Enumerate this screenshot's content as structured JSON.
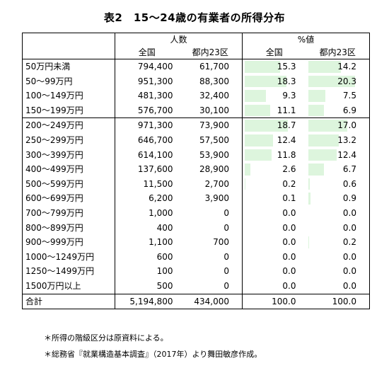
{
  "title": "表2　15〜24歳の有業者の所得分布",
  "header": {
    "group_count": "人数",
    "group_pct": "%値",
    "col_national": "全国",
    "col_tokyo23": "都内23区"
  },
  "rows": [
    {
      "label": "50万円未満",
      "n": "794,400",
      "t": "61,700",
      "pn": "15.3",
      "pt": "14.2",
      "pn_v": 15.3,
      "pt_v": 14.2
    },
    {
      "label": "50〜99万円",
      "n": "951,300",
      "t": "88,300",
      "pn": "18.3",
      "pt": "20.3",
      "pn_v": 18.3,
      "pt_v": 20.3
    },
    {
      "label": "100〜149万円",
      "n": "481,300",
      "t": "32,400",
      "pn": "9.3",
      "pt": "7.5",
      "pn_v": 9.3,
      "pt_v": 7.5
    },
    {
      "label": "150〜199万円",
      "n": "576,700",
      "t": "30,100",
      "pn": "11.1",
      "pt": "6.9",
      "pn_v": 11.1,
      "pt_v": 6.9
    },
    {
      "label": "200〜249万円",
      "n": "971,300",
      "t": "73,900",
      "pn": "18.7",
      "pt": "17.0",
      "pn_v": 18.7,
      "pt_v": 17.0
    },
    {
      "label": "250〜299万円",
      "n": "646,700",
      "t": "57,500",
      "pn": "12.4",
      "pt": "13.2",
      "pn_v": 12.4,
      "pt_v": 13.2
    },
    {
      "label": "300〜399万円",
      "n": "614,100",
      "t": "53,900",
      "pn": "11.8",
      "pt": "12.4",
      "pn_v": 11.8,
      "pt_v": 12.4
    },
    {
      "label": "400〜499万円",
      "n": "137,600",
      "t": "28,900",
      "pn": "2.6",
      "pt": "6.7",
      "pn_v": 2.6,
      "pt_v": 6.7
    },
    {
      "label": "500〜599万円",
      "n": "11,500",
      "t": "2,700",
      "pn": "0.2",
      "pt": "0.6",
      "pn_v": 0.2,
      "pt_v": 0.6
    },
    {
      "label": "600〜699万円",
      "n": "6,200",
      "t": "3,900",
      "pn": "0.1",
      "pt": "0.9",
      "pn_v": 0.1,
      "pt_v": 0.9
    },
    {
      "label": "700〜799万円",
      "n": "1,000",
      "t": "0",
      "pn": "0.0",
      "pt": "0.0",
      "pn_v": 0.0,
      "pt_v": 0.0
    },
    {
      "label": "800〜899万円",
      "n": "400",
      "t": "0",
      "pn": "0.0",
      "pt": "0.0",
      "pn_v": 0.0,
      "pt_v": 0.0
    },
    {
      "label": "900〜999万円",
      "n": "1,100",
      "t": "700",
      "pn": "0.0",
      "pt": "0.2",
      "pn_v": 0.0,
      "pt_v": 0.2
    },
    {
      "label": "1000〜1249万円",
      "n": "600",
      "t": "0",
      "pn": "0.0",
      "pt": "0.0",
      "pn_v": 0.0,
      "pt_v": 0.0
    },
    {
      "label": "1250〜1499万円",
      "n": "100",
      "t": "0",
      "pn": "0.0",
      "pt": "0.0",
      "pn_v": 0.0,
      "pt_v": 0.0
    },
    {
      "label": "1500万円以上",
      "n": "500",
      "t": "0",
      "pn": "0.0",
      "pt": "0.0",
      "pn_v": 0.0,
      "pt_v": 0.0
    }
  ],
  "total": {
    "label": "合計",
    "n": "5,194,800",
    "t": "434,000",
    "pn": "100.0",
    "pt": "100.0"
  },
  "bar_color": "#ddf5dd",
  "notes": [
    "＊所得の階級区分は原資料による。",
    "＊総務省『就業構造基本調査』（2017年）より舞田敏彦作成。"
  ]
}
